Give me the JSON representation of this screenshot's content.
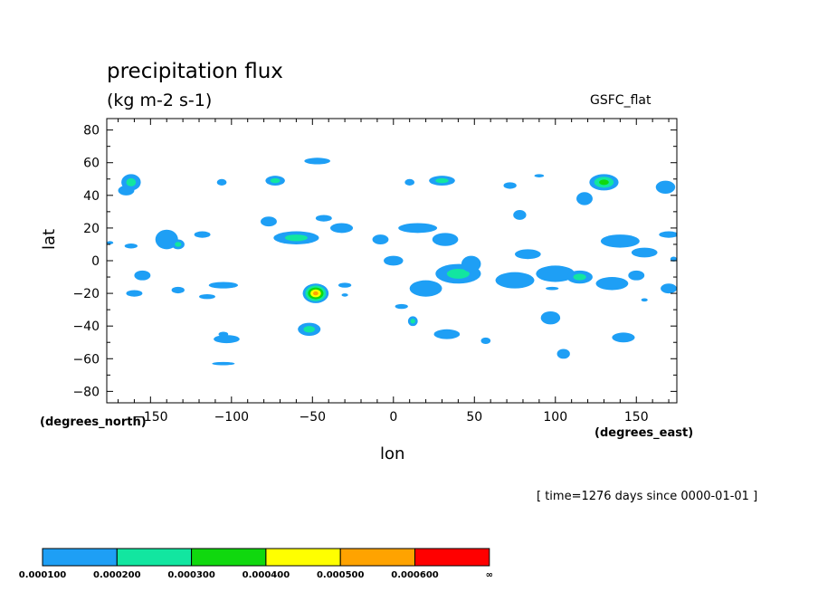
{
  "chart_data": {
    "type": "contour",
    "title": "precipitation flux",
    "units": "(kg m-2 s-1)",
    "source": "GSFC_flat",
    "xlabel": "lon",
    "ylabel": "lat",
    "x_units": "(degrees_east)",
    "y_units": "(degrees_north)",
    "time_note": "[ time=1276 days since 0000-01-01 ]",
    "xlim": [
      -177,
      175
    ],
    "ylim": [
      -87,
      87
    ],
    "x_ticks": [
      -150,
      -100,
      -50,
      0,
      50,
      100,
      150
    ],
    "y_ticks": [
      80,
      60,
      40,
      20,
      0,
      -20,
      -40,
      -60,
      -80
    ],
    "grid": false,
    "colorbar": {
      "placement": "bottom-left",
      "labels": [
        "0.000100",
        "0.000200",
        "0.000300",
        "0.000400",
        "0.000500",
        "0.000600",
        "∞"
      ],
      "colors": [
        "#1e9ff5",
        "#12e6a0",
        "#10d80e",
        "#ffff00",
        "#ffa300",
        "#ff0000"
      ]
    },
    "cells": [
      {
        "lon": -162,
        "lat": 48,
        "rx": 6,
        "ry": 5,
        "level": 2
      },
      {
        "lon": -165,
        "lat": 43,
        "rx": 5,
        "ry": 3,
        "level": 1
      },
      {
        "lon": -162,
        "lat": 9,
        "rx": 4,
        "ry": 1.5,
        "level": 1
      },
      {
        "lon": -175,
        "lat": 11,
        "rx": 2,
        "ry": 1,
        "level": 1
      },
      {
        "lon": -140,
        "lat": 13,
        "rx": 7,
        "ry": 6,
        "level": 1
      },
      {
        "lon": -133,
        "lat": 10,
        "rx": 4,
        "ry": 3,
        "level": 2
      },
      {
        "lon": -155,
        "lat": -9,
        "rx": 5,
        "ry": 3,
        "level": 1
      },
      {
        "lon": -160,
        "lat": -20,
        "rx": 5,
        "ry": 2,
        "level": 1
      },
      {
        "lon": -133,
        "lat": -18,
        "rx": 4,
        "ry": 2,
        "level": 1
      },
      {
        "lon": -118,
        "lat": 16,
        "rx": 5,
        "ry": 2,
        "level": 1
      },
      {
        "lon": -105,
        "lat": -15,
        "rx": 9,
        "ry": 2,
        "level": 1
      },
      {
        "lon": -115,
        "lat": -22,
        "rx": 5,
        "ry": 1.5,
        "level": 1
      },
      {
        "lon": -103,
        "lat": -48,
        "rx": 8,
        "ry": 2.5,
        "level": 1
      },
      {
        "lon": -105,
        "lat": -63,
        "rx": 7,
        "ry": 1,
        "level": 1
      },
      {
        "lon": -105,
        "lat": -45,
        "rx": 3,
        "ry": 1.5,
        "level": 1
      },
      {
        "lon": -106,
        "lat": 48,
        "rx": 3,
        "ry": 2,
        "level": 1
      },
      {
        "lon": -73,
        "lat": 49,
        "rx": 6,
        "ry": 3,
        "level": 2
      },
      {
        "lon": -60,
        "lat": 14,
        "rx": 14,
        "ry": 4,
        "level": 2
      },
      {
        "lon": -77,
        "lat": 24,
        "rx": 5,
        "ry": 3,
        "level": 1
      },
      {
        "lon": -47,
        "lat": 61,
        "rx": 8,
        "ry": 2,
        "level": 1
      },
      {
        "lon": -43,
        "lat": 26,
        "rx": 5,
        "ry": 2,
        "level": 1
      },
      {
        "lon": -32,
        "lat": 20,
        "rx": 7,
        "ry": 3,
        "level": 1
      },
      {
        "lon": -48,
        "lat": -20,
        "rx": 8,
        "ry": 6,
        "level": 5
      },
      {
        "lon": -52,
        "lat": -42,
        "rx": 7,
        "ry": 4,
        "level": 2
      },
      {
        "lon": -30,
        "lat": -15,
        "rx": 4,
        "ry": 1.5,
        "level": 1
      },
      {
        "lon": -30,
        "lat": -21,
        "rx": 2,
        "ry": 1,
        "level": 1
      },
      {
        "lon": -8,
        "lat": 13,
        "rx": 5,
        "ry": 3,
        "level": 1
      },
      {
        "lon": 10,
        "lat": 48,
        "rx": 3,
        "ry": 2,
        "level": 1
      },
      {
        "lon": 15,
        "lat": 20,
        "rx": 12,
        "ry": 3,
        "level": 1
      },
      {
        "lon": 30,
        "lat": 49,
        "rx": 8,
        "ry": 3,
        "level": 2
      },
      {
        "lon": 32,
        "lat": 13,
        "rx": 8,
        "ry": 4,
        "level": 1
      },
      {
        "lon": 0,
        "lat": 0,
        "rx": 6,
        "ry": 3,
        "level": 1
      },
      {
        "lon": 5,
        "lat": -28,
        "rx": 4,
        "ry": 1.5,
        "level": 1
      },
      {
        "lon": 20,
        "lat": -17,
        "rx": 10,
        "ry": 5,
        "level": 1
      },
      {
        "lon": 40,
        "lat": -8,
        "rx": 14,
        "ry": 6,
        "level": 2
      },
      {
        "lon": 48,
        "lat": -2,
        "rx": 6,
        "ry": 5,
        "level": 1
      },
      {
        "lon": 12,
        "lat": -37,
        "rx": 3,
        "ry": 3,
        "level": 2
      },
      {
        "lon": 33,
        "lat": -45,
        "rx": 8,
        "ry": 3,
        "level": 1
      },
      {
        "lon": 57,
        "lat": -49,
        "rx": 3,
        "ry": 2,
        "level": 1
      },
      {
        "lon": 72,
        "lat": 46,
        "rx": 4,
        "ry": 2,
        "level": 1
      },
      {
        "lon": 78,
        "lat": 28,
        "rx": 4,
        "ry": 3,
        "level": 1
      },
      {
        "lon": 90,
        "lat": 52,
        "rx": 3,
        "ry": 1,
        "level": 1
      },
      {
        "lon": 83,
        "lat": 4,
        "rx": 8,
        "ry": 3,
        "level": 1
      },
      {
        "lon": 75,
        "lat": -12,
        "rx": 12,
        "ry": 5,
        "level": 1
      },
      {
        "lon": 100,
        "lat": -8,
        "rx": 12,
        "ry": 5,
        "level": 1
      },
      {
        "lon": 115,
        "lat": -10,
        "rx": 8,
        "ry": 4,
        "level": 2
      },
      {
        "lon": 97,
        "lat": -35,
        "rx": 6,
        "ry": 4,
        "level": 1
      },
      {
        "lon": 105,
        "lat": -57,
        "rx": 4,
        "ry": 3,
        "level": 1
      },
      {
        "lon": 130,
        "lat": 48,
        "rx": 9,
        "ry": 5,
        "level": 3
      },
      {
        "lon": 118,
        "lat": 38,
        "rx": 5,
        "ry": 4,
        "level": 1
      },
      {
        "lon": 140,
        "lat": 12,
        "rx": 12,
        "ry": 4,
        "level": 1
      },
      {
        "lon": 135,
        "lat": -14,
        "rx": 10,
        "ry": 4,
        "level": 1
      },
      {
        "lon": 150,
        "lat": -9,
        "rx": 5,
        "ry": 3,
        "level": 1
      },
      {
        "lon": 155,
        "lat": 5,
        "rx": 8,
        "ry": 3,
        "level": 1
      },
      {
        "lon": 170,
        "lat": 16,
        "rx": 6,
        "ry": 2,
        "level": 1
      },
      {
        "lon": 168,
        "lat": 45,
        "rx": 6,
        "ry": 4,
        "level": 1
      },
      {
        "lon": 142,
        "lat": -47,
        "rx": 7,
        "ry": 3,
        "level": 1
      },
      {
        "lon": 170,
        "lat": -17,
        "rx": 5,
        "ry": 3,
        "level": 1
      },
      {
        "lon": 173,
        "lat": 1,
        "rx": 2,
        "ry": 1.5,
        "level": 1
      },
      {
        "lon": -180,
        "lat": -19,
        "rx": 3,
        "ry": 1.5,
        "level": 1
      },
      {
        "lon": 155,
        "lat": -24,
        "rx": 2,
        "ry": 1,
        "level": 1
      },
      {
        "lon": 98,
        "lat": -17,
        "rx": 4,
        "ry": 1,
        "level": 1
      }
    ]
  }
}
